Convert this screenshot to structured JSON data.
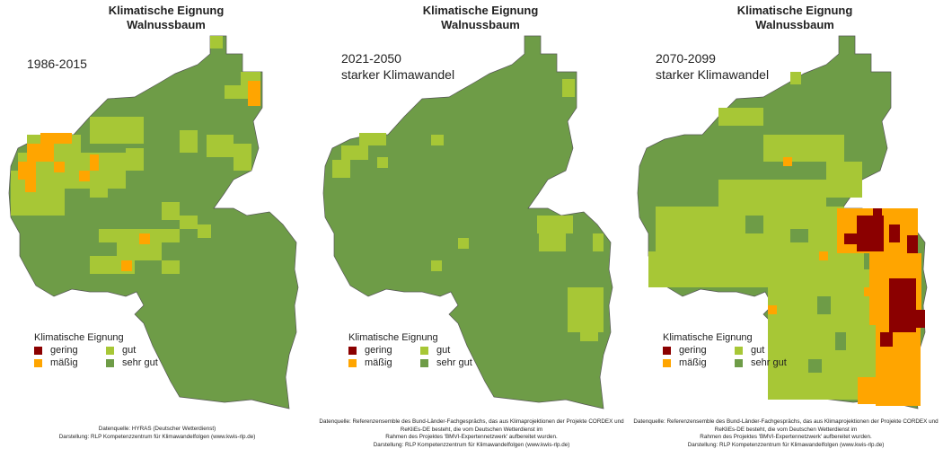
{
  "colors": {
    "gering": "#8b0000",
    "maessig": "#ffa500",
    "gut": "#a7c736",
    "sehr_gut": "#6e9c47",
    "border": "#555555"
  },
  "panels": [
    {
      "title_line1": "Klimatische Eignung",
      "title_line2": "Walnussbaum",
      "period_line1": "1986-2015",
      "period_line2": "",
      "legend_title": "Klimatische Eignung",
      "legend": [
        "gering",
        "gut",
        "mäßig",
        "sehr gut"
      ],
      "credit_line1": "Datenquelle: HYRAS (Deutscher Wetterdienst)",
      "credit_line2": "",
      "credit_line3": "Darstellung: RLP Kompetenzzentrum für Klimawandelfolgen (www.kwis-rlp.de)"
    },
    {
      "title_line1": "Klimatische Eignung",
      "title_line2": "Walnussbaum",
      "period_line1": "2021-2050",
      "period_line2": "starker Klimawandel",
      "legend_title": "Klimatische Eignung",
      "legend": [
        "gering",
        "gut",
        "mäßig",
        "sehr gut"
      ],
      "credit_line1": "Datenquelle: Referenzensemble des Bund-Länder-Fachgesprächs, das aus Klimaprojektionen der Projekte CORDEX und ReKliEs-DE besteht, die vom Deutschen Wetterdienst im",
      "credit_line2": "Rahmen des Projektes 'BMVI-Expertennetzwerk' aufbereitet wurden.",
      "credit_line3": "Darstellung: RLP Kompetenzzentrum für Klimawandelfolgen (www.kwis-rlp.de)"
    },
    {
      "title_line1": "Klimatische Eignung",
      "title_line2": "Walnussbaum",
      "period_line1": "2070-2099",
      "period_line2": "starker Klimawandel",
      "legend_title": "Klimatische Eignung",
      "legend": [
        "gering",
        "gut",
        "mäßig",
        "sehr gut"
      ],
      "credit_line1": "Datenquelle: Referenzensemble des Bund-Länder-Fachgesprächs, das aus Klimaprojektionen der Projekte CORDEX und ReKliEs-DE besteht, die vom Deutschen Wetterdienst im",
      "credit_line2": "Rahmen des Projektes 'BMVI-Expertennetzwerk' aufbereitet wurden.",
      "credit_line3": "Darstellung: RLP Kompetenzzentrum für Klimawandelfolgen (www.kwis-rlp.de)"
    }
  ]
}
